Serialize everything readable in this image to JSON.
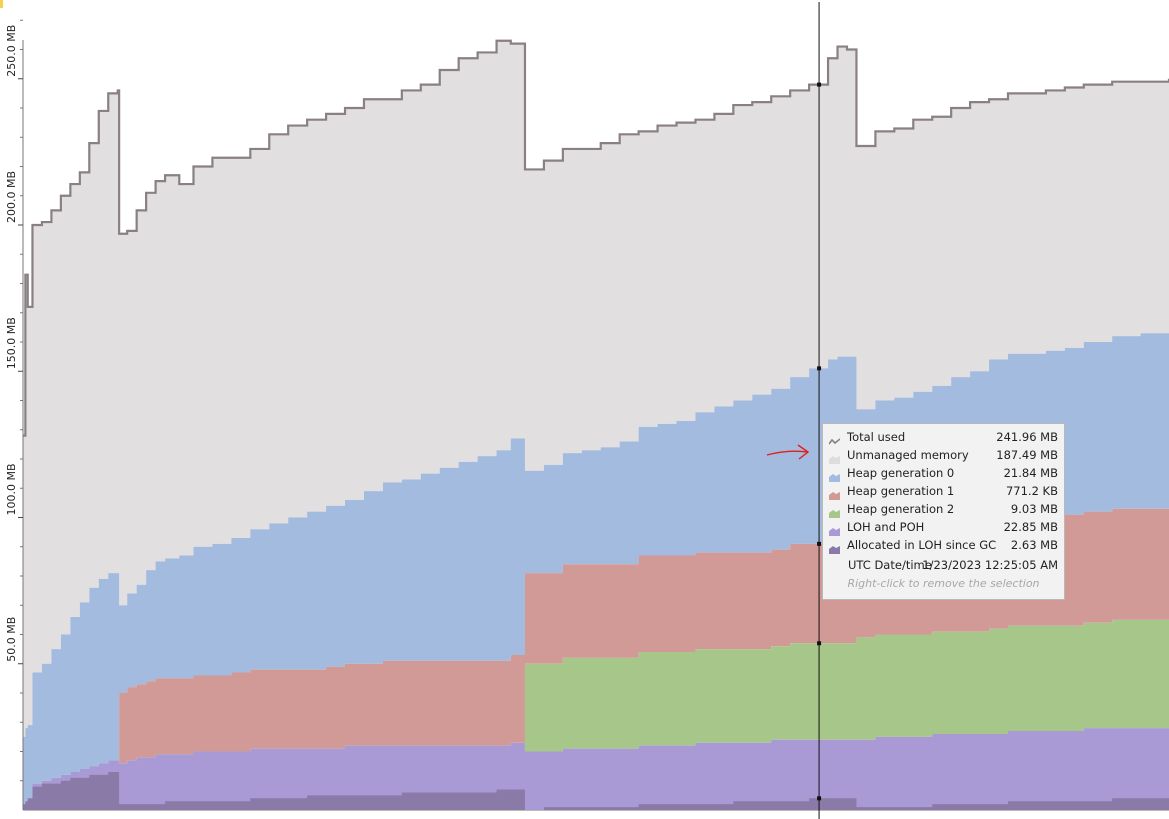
{
  "chart_data": {
    "type": "area",
    "title": "",
    "xlabel": "",
    "ylabel": "",
    "ylim": [
      0,
      275
    ],
    "yticks": [
      {
        "value": 50,
        "label": "50.0 MB"
      },
      {
        "value": 100,
        "label": "100.0 MB"
      },
      {
        "value": 150,
        "label": "150.0 MB"
      },
      {
        "value": 200,
        "label": "200.0 MB"
      },
      {
        "value": 250,
        "label": "250.0 MB"
      }
    ],
    "x": [
      0,
      0.5,
      1,
      2,
      4,
      6,
      8,
      10,
      12,
      14,
      16,
      18,
      20,
      20.3,
      22,
      24,
      26,
      28,
      30,
      33,
      36,
      40,
      44,
      48,
      52,
      56,
      60,
      64,
      68,
      72,
      76,
      80,
      84,
      88,
      92,
      96,
      100,
      103,
      106,
      108,
      110,
      114,
      118,
      122,
      126,
      130,
      134,
      138,
      142,
      146,
      150,
      154,
      158,
      162,
      166,
      170,
      172,
      174,
      176,
      180,
      184,
      188,
      192,
      196,
      200,
      204,
      208,
      212,
      216,
      220,
      224,
      230,
      236,
      242
    ],
    "series": [
      {
        "name": "Total used",
        "values": [
          128,
          183,
          172,
          200,
          201,
          205,
          210,
          214,
          218,
          228,
          239,
          245,
          246,
          197,
          198,
          205,
          211,
          215,
          217,
          214,
          220,
          223,
          223,
          226,
          231,
          234,
          236,
          238,
          240,
          243,
          243,
          246,
          248,
          253,
          257,
          259,
          263,
          262,
          219,
          219,
          222,
          226,
          226,
          228,
          231,
          232,
          234,
          235,
          236,
          238,
          241,
          242,
          244,
          246,
          248,
          257,
          261,
          260,
          227,
          232,
          233,
          236,
          237,
          240,
          242,
          243,
          245,
          245,
          246,
          247,
          248,
          249,
          249,
          250
        ]
      },
      {
        "name": "Heap generation 0",
        "values": [
          23,
          25,
          25,
          38,
          40,
          44,
          48,
          53,
          57,
          61,
          63,
          64,
          64,
          30,
          32,
          34,
          38,
          40,
          41,
          42,
          44,
          45,
          46,
          48,
          50,
          52,
          54,
          55,
          56,
          59,
          61,
          62,
          64,
          66,
          68,
          70,
          72,
          74,
          35,
          35,
          37,
          38,
          39,
          40,
          42,
          44,
          45,
          46,
          48,
          50,
          52,
          54,
          55,
          57,
          60,
          63,
          64,
          64,
          42,
          43,
          44,
          46,
          47,
          50,
          52,
          54,
          55,
          55,
          56,
          57,
          58,
          59,
          60,
          60
        ]
      },
      {
        "name": "Heap generation 1",
        "values": [
          0,
          0,
          0,
          0,
          0,
          0,
          0,
          0,
          0,
          0,
          0,
          0,
          0,
          24,
          25,
          25,
          26,
          26,
          26,
          26,
          26,
          26,
          27,
          27,
          27,
          27,
          27,
          28,
          28,
          28,
          29,
          29,
          29,
          29,
          29,
          29,
          29,
          30,
          31,
          31,
          31,
          32,
          32,
          32,
          32,
          33,
          33,
          33,
          33,
          33,
          33,
          33,
          33,
          34,
          34,
          34,
          34,
          34,
          36,
          37,
          37,
          37,
          37,
          37,
          37,
          38,
          38,
          38,
          38,
          38,
          38,
          38,
          38,
          38
        ]
      },
      {
        "name": "Heap generation 2",
        "values": [
          0,
          0,
          0,
          0,
          0,
          0,
          0,
          0,
          0,
          0,
          0,
          0,
          0,
          0,
          0,
          0,
          0,
          0,
          0,
          0,
          0,
          0,
          0,
          0,
          0,
          0,
          0,
          0,
          0,
          0,
          0,
          0,
          0,
          0,
          0,
          0,
          0,
          0,
          30,
          30,
          30,
          31,
          31,
          31,
          31,
          32,
          32,
          32,
          32,
          32,
          32,
          32,
          32,
          33,
          33,
          33,
          33,
          33,
          35,
          35,
          35,
          35,
          35,
          35,
          35,
          36,
          36,
          36,
          36,
          36,
          36,
          37,
          37,
          37
        ]
      },
      {
        "name": "LOH and POH",
        "values": [
          2,
          3,
          4,
          9,
          10,
          11,
          12,
          13,
          14,
          15,
          16,
          17,
          17,
          16,
          17,
          18,
          18,
          19,
          19,
          19,
          20,
          20,
          20,
          21,
          21,
          21,
          21,
          21,
          22,
          22,
          22,
          22,
          22,
          22,
          22,
          22,
          22,
          23,
          20,
          20,
          20,
          21,
          21,
          21,
          21,
          22,
          22,
          22,
          23,
          23,
          23,
          23,
          24,
          24,
          24,
          24,
          24,
          24,
          24,
          25,
          25,
          25,
          26,
          26,
          26,
          26,
          27,
          27,
          27,
          27,
          28,
          28,
          28,
          28
        ]
      },
      {
        "name": "Allocated in LOH since GC",
        "values": [
          2,
          3,
          4,
          8,
          9,
          9,
          10,
          11,
          11,
          12,
          12,
          13,
          13,
          2,
          2,
          2,
          2,
          2,
          3,
          3,
          3,
          3,
          3,
          4,
          4,
          4,
          5,
          5,
          5,
          5,
          5,
          6,
          6,
          6,
          6,
          6,
          7,
          7,
          0,
          0,
          1,
          1,
          1,
          1,
          1,
          2,
          2,
          2,
          2,
          2,
          3,
          3,
          3,
          3,
          4,
          4,
          4,
          4,
          1,
          1,
          1,
          1,
          2,
          2,
          2,
          2,
          3,
          3,
          3,
          3,
          3,
          4,
          4,
          4
        ]
      }
    ],
    "selection_x": 168,
    "grid": false,
    "legend": "tooltip",
    "tooltip": {
      "rows": [
        {
          "label": "Total used",
          "value": "241.96 MB",
          "color": "#8a8084",
          "icon": "line"
        },
        {
          "label": "Unmanaged memory",
          "value": "187.49 MB",
          "color": "#dedcdd",
          "icon": "area"
        },
        {
          "label": "Heap generation 0",
          "value": "21.84 MB",
          "color": "#a3bbde",
          "icon": "area"
        },
        {
          "label": "Heap generation 1",
          "value": "771.2 KB",
          "color": "#d29a97",
          "icon": "area"
        },
        {
          "label": "Heap generation 2",
          "value": "9.03 MB",
          "color": "#a6c68a",
          "icon": "area"
        },
        {
          "label": "LOH and POH",
          "value": "22.85 MB",
          "color": "#a99ad6",
          "icon": "area"
        },
        {
          "label": "Allocated in LOH since GC",
          "value": "2.63 MB",
          "color": "#8a7aa8",
          "icon": "area"
        }
      ],
      "date_label": "UTC Date/time",
      "date_value": "1/23/2023 12:25:05 AM",
      "hint": "Right-click to remove the selection"
    },
    "colors": {
      "unmanaged": "#e2dfe1",
      "total_line": "#8a8084",
      "gen0": "#a3bbde",
      "gen1": "#d29a97",
      "gen2": "#a6c68a",
      "loh": "#a99ad6",
      "loh_alloc": "#8a7aa8",
      "annotation": "#e0201a"
    }
  }
}
